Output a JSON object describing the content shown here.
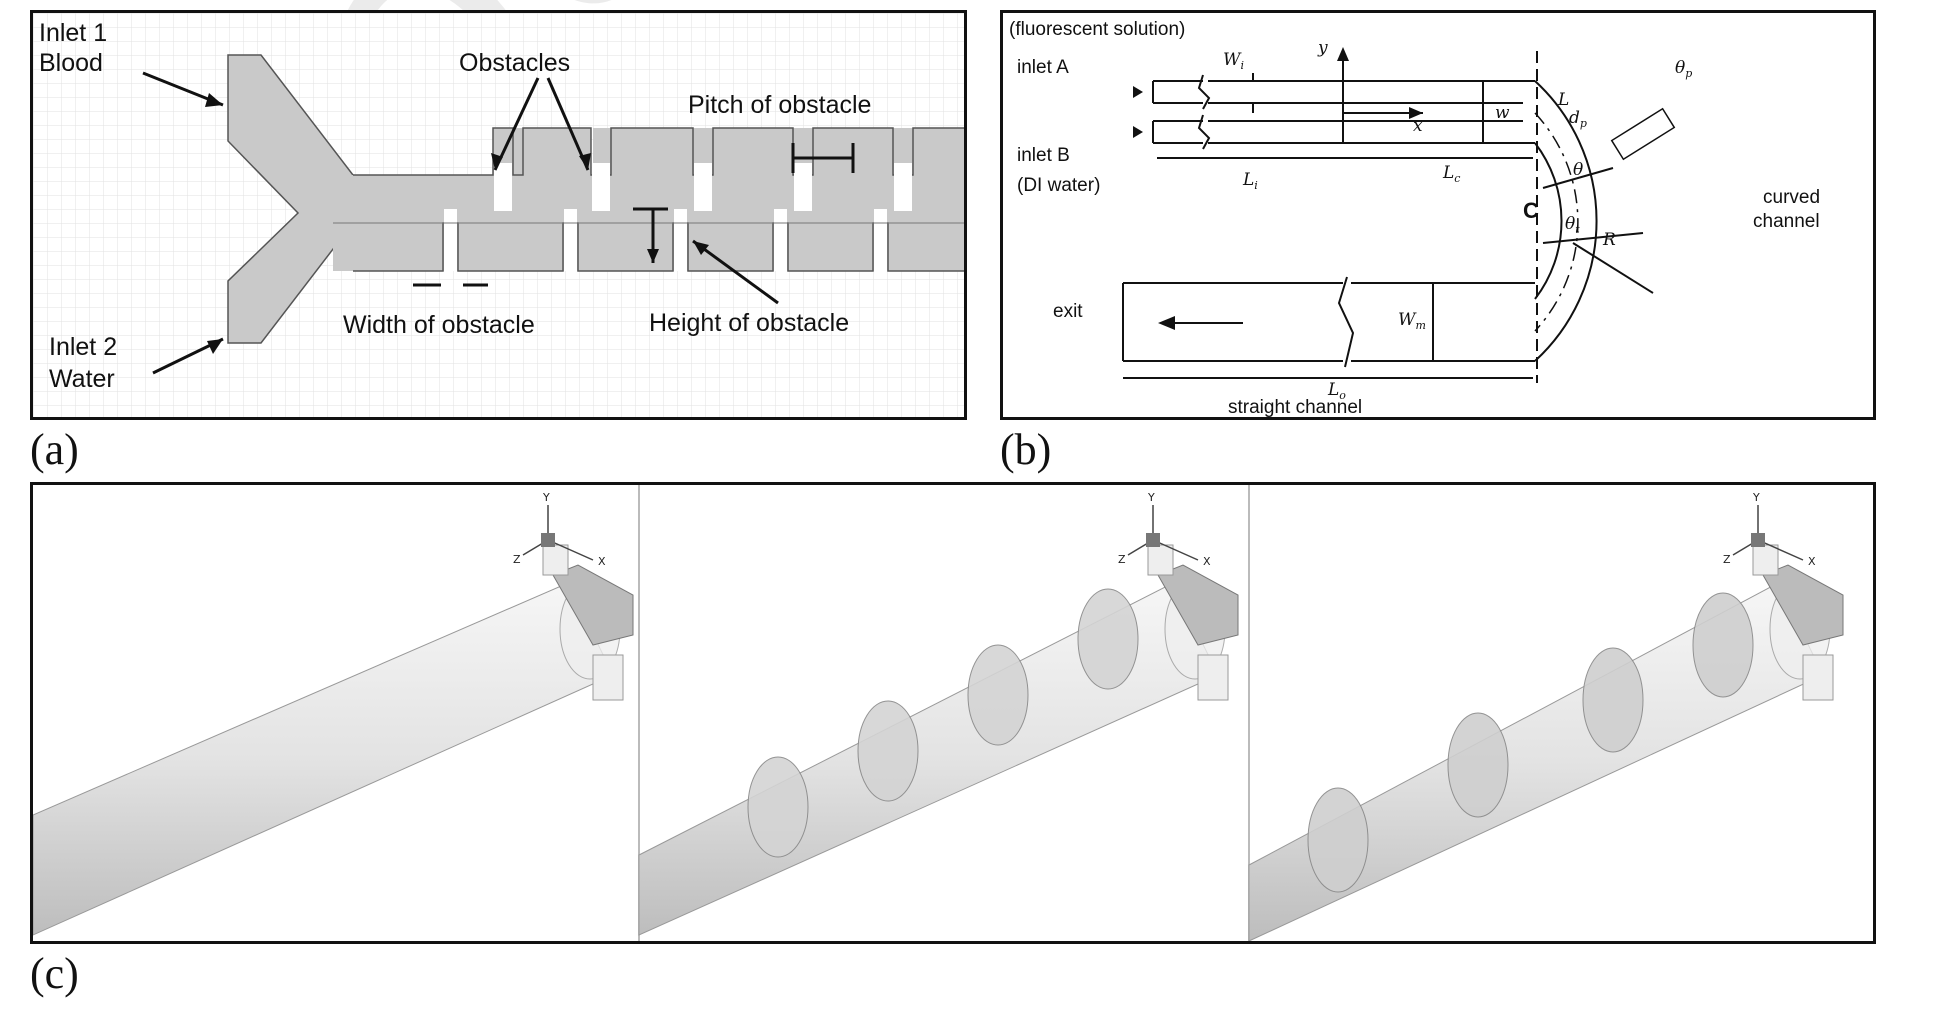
{
  "figure": {
    "panel_labels": {
      "a": "(a)",
      "b": "(b)",
      "c": "(c)"
    },
    "watermark": "Journal"
  },
  "panel_a": {
    "inlet1_line1": "Inlet 1",
    "inlet1_line2": "Blood",
    "inlet2_line1": "Inlet 2",
    "inlet2_line2": "Water",
    "obstacles": "Obstacles",
    "pitch": "Pitch of obstacle",
    "width": "Width of obstacle",
    "height": "Height of obstacle",
    "colors": {
      "channel": "#c9c9c9",
      "grid": "#e2e2e2"
    }
  },
  "panel_b": {
    "fluorescent": "(fluorescent solution)",
    "inletA": "inlet A",
    "inletB": "inlet B",
    "diwater": "(DI water)",
    "curved_line1": "curved",
    "curved_line2": "channel",
    "exit": "exit",
    "straight": "straight channel",
    "Wi": "W",
    "Wi_sub": "i",
    "y": "y",
    "x": "x",
    "w": "w",
    "Li": "L",
    "Li_sub": "i",
    "Lc": "L",
    "Lc_sub": "c",
    "theta_p": "θ",
    "theta_p_sub": "p",
    "Ld": "L",
    "dp": "d",
    "dp_sub": "p",
    "theta": "θ",
    "C": "C",
    "theta_t": "θ",
    "theta_t_sub": "t",
    "R": "R",
    "Wm": "W",
    "Wm_sub": "m",
    "Lo": "L",
    "Lo_sub": "o"
  },
  "panel_c": {
    "axis": {
      "y": "Y",
      "x": "X",
      "z": "Z"
    }
  }
}
